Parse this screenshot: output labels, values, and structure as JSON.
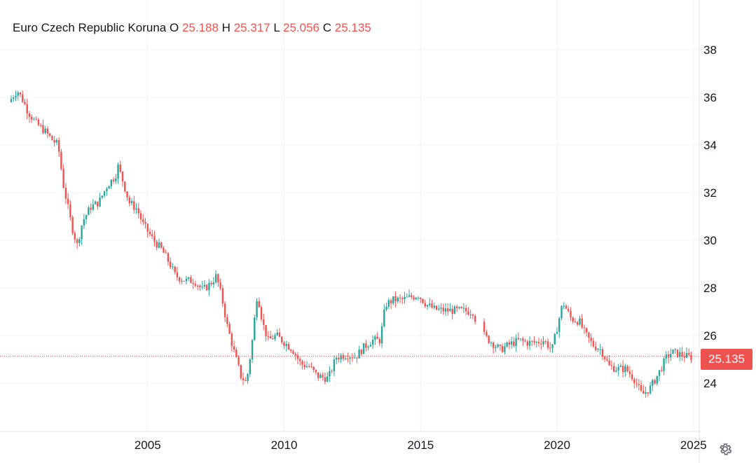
{
  "legend": {
    "symbol": "Euro Czech Republic Koruna",
    "o_label": "O",
    "o_value": "25.188",
    "h_label": "H",
    "h_value": "25.317",
    "l_label": "L",
    "l_value": "25.056",
    "c_label": "C",
    "c_value": "25.135"
  },
  "price_tag": "25.135",
  "icons": {
    "settings": "gear-icon"
  },
  "colors": {
    "up": "#26a69a",
    "down": "#ef5350",
    "grid": "#f0f3fa",
    "text": "#131722"
  },
  "chart_data": {
    "type": "candlestick",
    "title": "Euro Czech Republic Koruna",
    "x_range": [
      2000.0,
      2025.0
    ],
    "ylim": [
      21.5,
      39.5
    ],
    "y_ticks": [
      24,
      26,
      28,
      30,
      32,
      34,
      36,
      38
    ],
    "x_ticks": [
      2005,
      2010,
      2015,
      2020,
      2025
    ],
    "last_price": 25.135,
    "grid": true,
    "series": [
      {
        "x": 2000.0,
        "y": 35.8
      },
      {
        "x": 2000.3,
        "y": 36.3
      },
      {
        "x": 2000.5,
        "y": 35.9
      },
      {
        "x": 2000.7,
        "y": 35.4
      },
      {
        "x": 2001.0,
        "y": 34.9
      },
      {
        "x": 2001.3,
        "y": 34.6
      },
      {
        "x": 2001.6,
        "y": 34.2
      },
      {
        "x": 2001.8,
        "y": 34.0
      },
      {
        "x": 2002.0,
        "y": 32.3
      },
      {
        "x": 2002.3,
        "y": 30.6
      },
      {
        "x": 2002.5,
        "y": 29.8
      },
      {
        "x": 2002.7,
        "y": 30.8
      },
      {
        "x": 2003.0,
        "y": 31.4
      },
      {
        "x": 2003.3,
        "y": 31.6
      },
      {
        "x": 2003.6,
        "y": 32.3
      },
      {
        "x": 2003.9,
        "y": 32.7
      },
      {
        "x": 2004.0,
        "y": 33.1
      },
      {
        "x": 2004.2,
        "y": 32.4
      },
      {
        "x": 2004.4,
        "y": 31.6
      },
      {
        "x": 2004.7,
        "y": 31.3
      },
      {
        "x": 2004.9,
        "y": 30.7
      },
      {
        "x": 2005.3,
        "y": 30.0
      },
      {
        "x": 2005.6,
        "y": 29.6
      },
      {
        "x": 2005.9,
        "y": 29.0
      },
      {
        "x": 2006.1,
        "y": 28.5
      },
      {
        "x": 2006.5,
        "y": 28.3
      },
      {
        "x": 2006.8,
        "y": 28.3
      },
      {
        "x": 2007.1,
        "y": 27.9
      },
      {
        "x": 2007.4,
        "y": 28.2
      },
      {
        "x": 2007.6,
        "y": 28.5
      },
      {
        "x": 2007.8,
        "y": 27.6
      },
      {
        "x": 2008.0,
        "y": 26.4
      },
      {
        "x": 2008.3,
        "y": 25.1
      },
      {
        "x": 2008.5,
        "y": 24.3
      },
      {
        "x": 2008.7,
        "y": 24.0
      },
      {
        "x": 2008.9,
        "y": 25.6
      },
      {
        "x": 2009.1,
        "y": 27.8
      },
      {
        "x": 2009.3,
        "y": 26.5
      },
      {
        "x": 2009.5,
        "y": 25.8
      },
      {
        "x": 2009.8,
        "y": 26.0
      },
      {
        "x": 2010.1,
        "y": 25.7
      },
      {
        "x": 2010.4,
        "y": 25.4
      },
      {
        "x": 2010.7,
        "y": 24.8
      },
      {
        "x": 2011.0,
        "y": 24.7
      },
      {
        "x": 2011.3,
        "y": 24.3
      },
      {
        "x": 2011.7,
        "y": 24.2
      },
      {
        "x": 2012.0,
        "y": 25.1
      },
      {
        "x": 2012.4,
        "y": 25.2
      },
      {
        "x": 2012.7,
        "y": 25.1
      },
      {
        "x": 2013.0,
        "y": 25.5
      },
      {
        "x": 2013.3,
        "y": 25.8
      },
      {
        "x": 2013.6,
        "y": 25.8
      },
      {
        "x": 2013.8,
        "y": 27.3
      },
      {
        "x": 2014.1,
        "y": 27.5
      },
      {
        "x": 2014.4,
        "y": 27.5
      },
      {
        "x": 2014.7,
        "y": 27.6
      },
      {
        "x": 2015.0,
        "y": 27.7
      },
      {
        "x": 2015.3,
        "y": 27.3
      },
      {
        "x": 2015.6,
        "y": 27.1
      },
      {
        "x": 2016.0,
        "y": 27.05
      },
      {
        "x": 2016.5,
        "y": 27.05
      },
      {
        "x": 2017.0,
        "y": 27.0
      },
      {
        "x": 2017.2,
        "y": 26.3
      },
      {
        "x": 2017.5,
        "y": 25.9
      },
      {
        "x": 2017.8,
        "y": 25.6
      },
      {
        "x": 2018.0,
        "y": 25.4
      },
      {
        "x": 2018.3,
        "y": 25.6
      },
      {
        "x": 2018.7,
        "y": 25.8
      },
      {
        "x": 2019.0,
        "y": 25.7
      },
      {
        "x": 2019.3,
        "y": 25.7
      },
      {
        "x": 2019.6,
        "y": 25.8
      },
      {
        "x": 2019.9,
        "y": 25.4
      },
      {
        "x": 2020.1,
        "y": 26.4
      },
      {
        "x": 2020.3,
        "y": 27.4
      },
      {
        "x": 2020.6,
        "y": 26.7
      },
      {
        "x": 2020.9,
        "y": 26.6
      },
      {
        "x": 2021.1,
        "y": 26.1
      },
      {
        "x": 2021.4,
        "y": 25.6
      },
      {
        "x": 2021.7,
        "y": 25.4
      },
      {
        "x": 2022.0,
        "y": 24.7
      },
      {
        "x": 2022.3,
        "y": 24.6
      },
      {
        "x": 2022.6,
        "y": 24.6
      },
      {
        "x": 2022.9,
        "y": 24.2
      },
      {
        "x": 2023.2,
        "y": 23.5
      },
      {
        "x": 2023.5,
        "y": 23.8
      },
      {
        "x": 2023.8,
        "y": 24.4
      },
      {
        "x": 2024.1,
        "y": 25.1
      },
      {
        "x": 2024.3,
        "y": 25.3
      },
      {
        "x": 2024.6,
        "y": 25.2
      },
      {
        "x": 2024.9,
        "y": 25.1
      }
    ]
  }
}
